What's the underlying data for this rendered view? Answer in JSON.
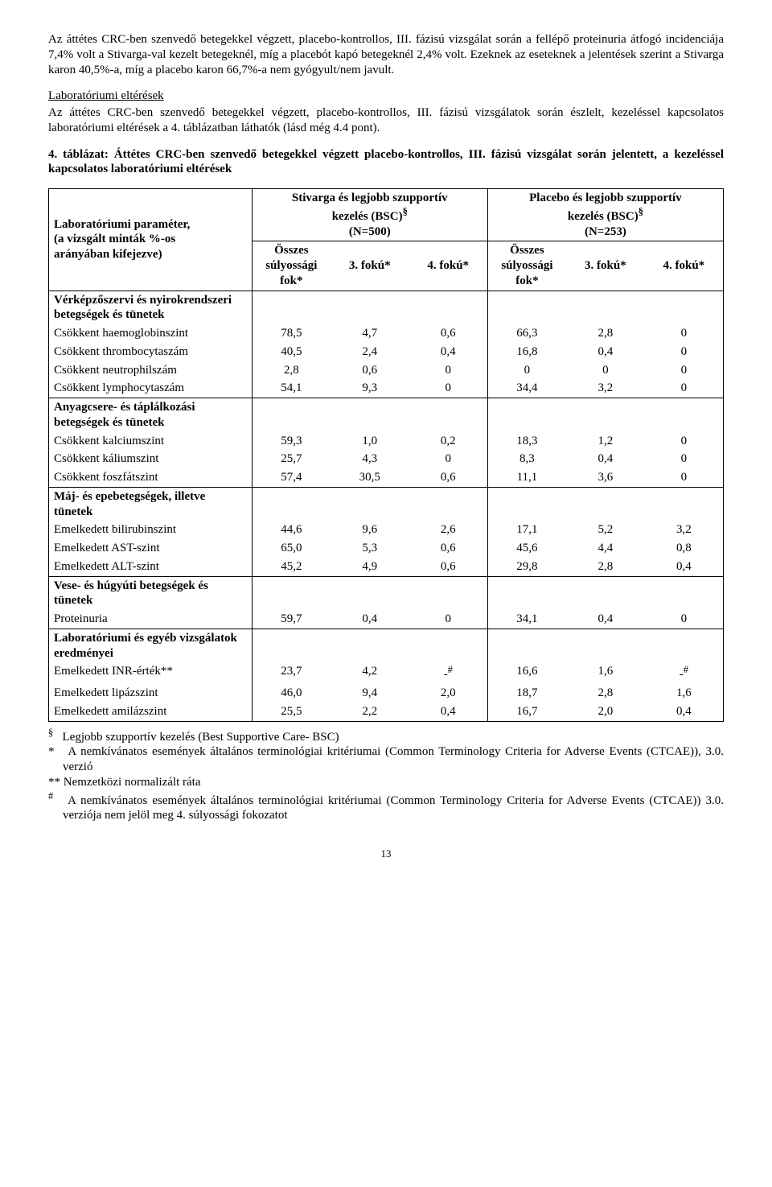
{
  "paragraphs": {
    "p1": "Az áttétes CRC-ben szenvedő betegekkel végzett, placebo-kontrollos, III. fázisú vizsgálat során a fellépő proteinuria átfogó incidenciája 7,4% volt a Stivarga-val kezelt betegeknél, míg a placebót kapó betegeknél 2,4% volt. Ezeknek az eseteknek a jelentések szerint a Stivarga karon 40,5%-a, míg a placebo karon 66,7%-a nem gyógyult/nem javult.",
    "lab_title": "Laboratóriumi eltérések",
    "p2": "Az áttétes CRC-ben szenvedő betegekkel végzett, placebo-kontrollos, III. fázisú vizsgálatok során észlelt, kezeléssel kapcsolatos laboratóriumi eltérések a 4. táblázatban láthatók (lásd még 4.4 pont).",
    "table_caption": "4. táblázat: Áttétes CRC-ben szenvedő betegekkel végzett placebo-kontrollos, III. fázisú vizsgálat során jelentett, a kezeléssel kapcsolatos laboratóriumi eltérések"
  },
  "table": {
    "param_header_l1": "Laboratóriumi paraméter,",
    "param_header_l2": "(a vizsgált minták %-os",
    "param_header_l3": "arányában kifejezve)",
    "stivarga_header_l1": "Stivarga és legjobb szupportív",
    "stivarga_header_l2": "kezelés (BSC)",
    "stivarga_header_n": "(N=500)",
    "placebo_header_l1": "Placebo és legjobb szupportív",
    "placebo_header_l2": "kezelés (BSC)",
    "placebo_header_n": "(N=253)",
    "col_all_l1": "Összes",
    "col_all_l2": "súlyossági",
    "col_all_l3": "fok*",
    "col_g3": "3. fokú*",
    "col_g4": "4. fokú*",
    "sup_sym": "§",
    "groups": [
      {
        "title": "Vérképzőszervi és nyirokrendszeri betegségek és tünetek",
        "rows": [
          {
            "label": "Csökkent haemoglobinszint",
            "s": [
              "78,5",
              "4,7",
              "0,6"
            ],
            "p": [
              "66,3",
              "2,8",
              "0"
            ]
          },
          {
            "label": "Csökkent thrombocytaszám",
            "s": [
              "40,5",
              "2,4",
              "0,4"
            ],
            "p": [
              "16,8",
              "0,4",
              "0"
            ]
          },
          {
            "label": "Csökkent neutrophilszám",
            "s": [
              "2,8",
              "0,6",
              "0"
            ],
            "p": [
              "0",
              "0",
              "0"
            ]
          },
          {
            "label": "Csökkent lymphocytaszám",
            "s": [
              "54,1",
              "9,3",
              "0"
            ],
            "p": [
              "34,4",
              "3,2",
              "0"
            ]
          }
        ]
      },
      {
        "title": "Anyagcsere- és táplálkozási betegségek és tünetek",
        "rows": [
          {
            "label": "Csökkent kalciumszint",
            "s": [
              "59,3",
              "1,0",
              "0,2"
            ],
            "p": [
              "18,3",
              "1,2",
              "0"
            ]
          },
          {
            "label": "Csökkent káliumszint",
            "s": [
              "25,7",
              "4,3",
              "0"
            ],
            "p": [
              "8,3",
              "0,4",
              "0"
            ]
          },
          {
            "label": "Csökkent foszfátszint",
            "s": [
              "57,4",
              "30,5",
              "0,6"
            ],
            "p": [
              "11,1",
              "3,6",
              "0"
            ]
          }
        ]
      },
      {
        "title": "Máj- és epebetegségek, illetve tünetek",
        "rows": [
          {
            "label": "Emelkedett bilirubinszint",
            "s": [
              "44,6",
              "9,6",
              "2,6"
            ],
            "p": [
              "17,1",
              "5,2",
              "3,2"
            ]
          },
          {
            "label": "Emelkedett AST-szint",
            "s": [
              "65,0",
              "5,3",
              "0,6"
            ],
            "p": [
              "45,6",
              "4,4",
              "0,8"
            ]
          },
          {
            "label": "Emelkedett ALT-szint",
            "s": [
              "45,2",
              "4,9",
              "0,6"
            ],
            "p": [
              "29,8",
              "2,8",
              "0,4"
            ]
          }
        ]
      },
      {
        "title": "Vese- és húgyúti betegségek és tünetek",
        "rows": [
          {
            "label": "Proteinuria",
            "s": [
              "59,7",
              "0,4",
              "0"
            ],
            "p": [
              "34,1",
              "0,4",
              "0"
            ]
          }
        ]
      },
      {
        "title": "Laboratóriumi és egyéb vizsgálatok eredményei",
        "rows": [
          {
            "label": "Emelkedett INR-érték**",
            "s": [
              "23,7",
              "4,2",
              "-#"
            ],
            "p": [
              "16,6",
              "1,6",
              "-#"
            ]
          },
          {
            "label": "Emelkedett lipázszint",
            "s": [
              "46,0",
              "9,4",
              "2,0"
            ],
            "p": [
              "18,7",
              "2,8",
              "1,6"
            ]
          },
          {
            "label": "Emelkedett amilázszint",
            "s": [
              "25,5",
              "2,2",
              "0,4"
            ],
            "p": [
              "16,7",
              "2,0",
              "0,4"
            ]
          }
        ]
      }
    ]
  },
  "footnotes": {
    "f1_sym": "§",
    "f1": "Legjobb szupportív kezelés (Best Supportive Care- BSC)",
    "f2_sym": "*",
    "f2": "A nemkívánatos események általános terminológiai kritériumai (Common Terminology Criteria for Adverse Events (CTCAE)), 3.0. verzió",
    "f3_sym": "**",
    "f3": "Nemzetközi normalizált ráta",
    "f4_sym": "#",
    "f4": "A nemkívánatos események általános terminológiai kritériumai (Common Terminology Criteria for Adverse Events (CTCAE)) 3.0. verziója nem jelöl meg 4. súlyossági fokozatot"
  },
  "page_number": "13"
}
